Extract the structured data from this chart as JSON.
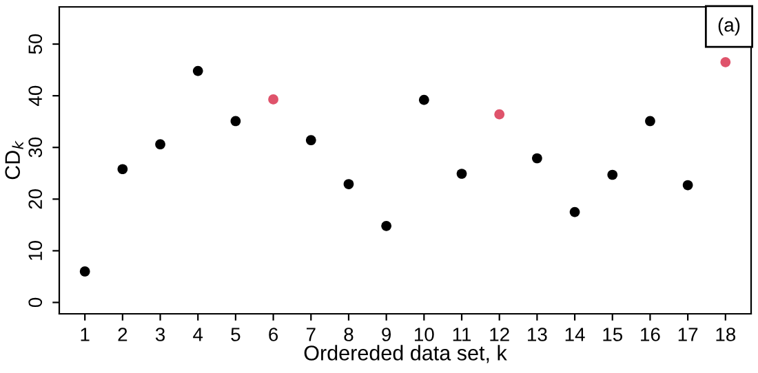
{
  "chart_data": {
    "type": "scatter",
    "xlabel": "Ordereded data set, k",
    "ylabel": "CD$_{k}$",
    "x": [
      1,
      2,
      3,
      4,
      5,
      6,
      7,
      8,
      9,
      10,
      11,
      12,
      13,
      14,
      15,
      16,
      17,
      18
    ],
    "values": [
      6.0,
      25.8,
      30.6,
      44.8,
      35.1,
      39.3,
      31.4,
      22.9,
      14.8,
      39.2,
      24.9,
      36.4,
      27.9,
      17.5,
      24.7,
      35.1,
      22.7,
      46.5
    ],
    "colors": [
      "#000000",
      "#000000",
      "#000000",
      "#000000",
      "#000000",
      "#df536b",
      "#000000",
      "#000000",
      "#000000",
      "#000000",
      "#000000",
      "#df536b",
      "#000000",
      "#000000",
      "#000000",
      "#000000",
      "#000000",
      "#df536b"
    ],
    "xlim": [
      0.32,
      18.68
    ],
    "xticks": [
      1,
      2,
      3,
      4,
      5,
      6,
      7,
      8,
      9,
      10,
      11,
      12,
      13,
      14,
      15,
      16,
      17,
      18
    ],
    "ylim": [
      -2.2,
      57.2
    ],
    "yticks": [
      0,
      10,
      20,
      30,
      40,
      50
    ],
    "marker": "circle",
    "grid": false,
    "legend": false,
    "annotations": [
      "(a)"
    ]
  }
}
